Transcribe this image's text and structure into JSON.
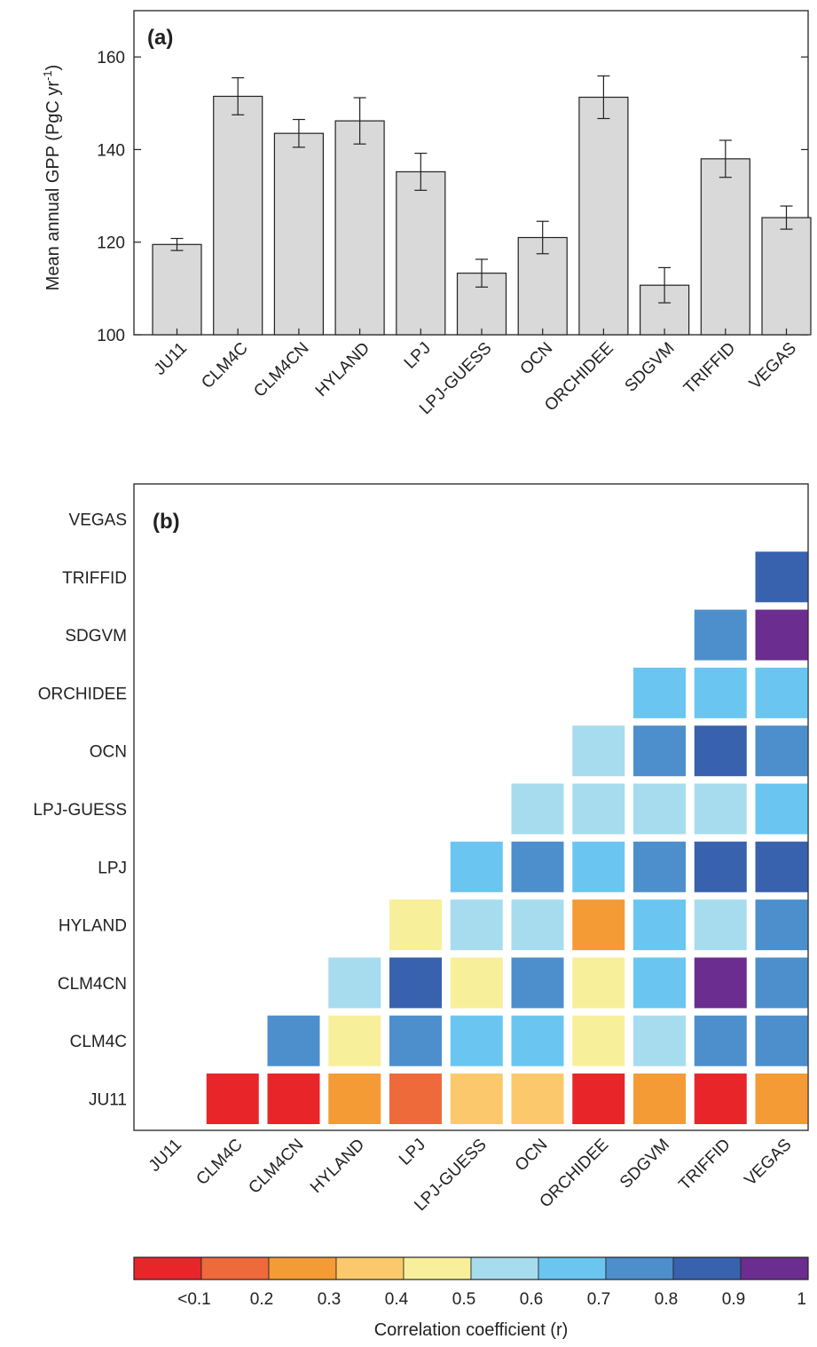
{
  "chart_data": [
    {
      "type": "bar",
      "panel_label": "(a)",
      "ylabel": "Mean annual GPP (PgC yr",
      "ylabel_sup": "-1",
      "ylabel_close": ")",
      "ylim": [
        100,
        170
      ],
      "yticks": [
        100,
        120,
        140,
        160
      ],
      "categories": [
        "JU11",
        "CLM4C",
        "CLM4CN",
        "HYLAND",
        "LPJ",
        "LPJ-GUESS",
        "OCN",
        "ORCHIDEE",
        "SDGVM",
        "TRIFFID",
        "VEGAS"
      ],
      "values": [
        119.5,
        151.5,
        143.5,
        146.2,
        135.2,
        113.3,
        121.0,
        151.3,
        110.7,
        138.0,
        125.3
      ],
      "errors": [
        1.3,
        4.0,
        3.0,
        5.0,
        4.0,
        3.0,
        3.5,
        4.6,
        3.8,
        4.0,
        2.5
      ],
      "bar_color": "#d9d9d9",
      "grid": false
    },
    {
      "type": "heatmap",
      "panel_label": "(b)",
      "x_categories": [
        "JU11",
        "CLM4C",
        "CLM4CN",
        "HYLAND",
        "LPJ",
        "LPJ-GUESS",
        "OCN",
        "ORCHIDEE",
        "SDGVM",
        "TRIFFID",
        "VEGAS"
      ],
      "y_categories": [
        "JU11",
        "CLM4C",
        "CLM4CN",
        "HYLAND",
        "LPJ",
        "LPJ-GUESS",
        "OCN",
        "ORCHIDEE",
        "SDGVM",
        "TRIFFID",
        "VEGAS"
      ],
      "cells": [
        {
          "row": "JU11",
          "col": "CLM4C",
          "r": 0.05
        },
        {
          "row": "JU11",
          "col": "CLM4CN",
          "r": 0.05
        },
        {
          "row": "JU11",
          "col": "HYLAND",
          "r": 0.25
        },
        {
          "row": "JU11",
          "col": "LPJ",
          "r": 0.15
        },
        {
          "row": "JU11",
          "col": "LPJ-GUESS",
          "r": 0.35
        },
        {
          "row": "JU11",
          "col": "OCN",
          "r": 0.35
        },
        {
          "row": "JU11",
          "col": "ORCHIDEE",
          "r": 0.05
        },
        {
          "row": "JU11",
          "col": "SDGVM",
          "r": 0.25
        },
        {
          "row": "JU11",
          "col": "TRIFFID",
          "r": 0.05
        },
        {
          "row": "JU11",
          "col": "VEGAS",
          "r": 0.25
        },
        {
          "row": "CLM4C",
          "col": "CLM4CN",
          "r": 0.75
        },
        {
          "row": "CLM4C",
          "col": "HYLAND",
          "r": 0.45
        },
        {
          "row": "CLM4C",
          "col": "LPJ",
          "r": 0.75
        },
        {
          "row": "CLM4C",
          "col": "LPJ-GUESS",
          "r": 0.65
        },
        {
          "row": "CLM4C",
          "col": "OCN",
          "r": 0.65
        },
        {
          "row": "CLM4C",
          "col": "ORCHIDEE",
          "r": 0.45
        },
        {
          "row": "CLM4C",
          "col": "SDGVM",
          "r": 0.55
        },
        {
          "row": "CLM4C",
          "col": "TRIFFID",
          "r": 0.75
        },
        {
          "row": "CLM4C",
          "col": "VEGAS",
          "r": 0.75
        },
        {
          "row": "CLM4CN",
          "col": "HYLAND",
          "r": 0.55
        },
        {
          "row": "CLM4CN",
          "col": "LPJ",
          "r": 0.85
        },
        {
          "row": "CLM4CN",
          "col": "LPJ-GUESS",
          "r": 0.45
        },
        {
          "row": "CLM4CN",
          "col": "OCN",
          "r": 0.75
        },
        {
          "row": "CLM4CN",
          "col": "ORCHIDEE",
          "r": 0.45
        },
        {
          "row": "CLM4CN",
          "col": "SDGVM",
          "r": 0.65
        },
        {
          "row": "CLM4CN",
          "col": "TRIFFID",
          "r": 0.95
        },
        {
          "row": "CLM4CN",
          "col": "VEGAS",
          "r": 0.75
        },
        {
          "row": "HYLAND",
          "col": "LPJ",
          "r": 0.45
        },
        {
          "row": "HYLAND",
          "col": "LPJ-GUESS",
          "r": 0.55
        },
        {
          "row": "HYLAND",
          "col": "OCN",
          "r": 0.55
        },
        {
          "row": "HYLAND",
          "col": "ORCHIDEE",
          "r": 0.25
        },
        {
          "row": "HYLAND",
          "col": "SDGVM",
          "r": 0.65
        },
        {
          "row": "HYLAND",
          "col": "TRIFFID",
          "r": 0.55
        },
        {
          "row": "HYLAND",
          "col": "VEGAS",
          "r": 0.75
        },
        {
          "row": "LPJ",
          "col": "LPJ-GUESS",
          "r": 0.65
        },
        {
          "row": "LPJ",
          "col": "OCN",
          "r": 0.75
        },
        {
          "row": "LPJ",
          "col": "ORCHIDEE",
          "r": 0.65
        },
        {
          "row": "LPJ",
          "col": "SDGVM",
          "r": 0.75
        },
        {
          "row": "LPJ",
          "col": "TRIFFID",
          "r": 0.85
        },
        {
          "row": "LPJ",
          "col": "VEGAS",
          "r": 0.85
        },
        {
          "row": "LPJ-GUESS",
          "col": "OCN",
          "r": 0.55
        },
        {
          "row": "LPJ-GUESS",
          "col": "ORCHIDEE",
          "r": 0.55
        },
        {
          "row": "LPJ-GUESS",
          "col": "SDGVM",
          "r": 0.55
        },
        {
          "row": "LPJ-GUESS",
          "col": "TRIFFID",
          "r": 0.55
        },
        {
          "row": "LPJ-GUESS",
          "col": "VEGAS",
          "r": 0.65
        },
        {
          "row": "OCN",
          "col": "ORCHIDEE",
          "r": 0.55
        },
        {
          "row": "OCN",
          "col": "SDGVM",
          "r": 0.75
        },
        {
          "row": "OCN",
          "col": "TRIFFID",
          "r": 0.85
        },
        {
          "row": "OCN",
          "col": "VEGAS",
          "r": 0.75
        },
        {
          "row": "ORCHIDEE",
          "col": "SDGVM",
          "r": 0.65
        },
        {
          "row": "ORCHIDEE",
          "col": "TRIFFID",
          "r": 0.65
        },
        {
          "row": "ORCHIDEE",
          "col": "VEGAS",
          "r": 0.65
        },
        {
          "row": "SDGVM",
          "col": "TRIFFID",
          "r": 0.75
        },
        {
          "row": "SDGVM",
          "col": "VEGAS",
          "r": 0.95
        },
        {
          "row": "TRIFFID",
          "col": "VEGAS",
          "r": 0.85
        }
      ],
      "colorbar": {
        "label": "Correlation coefficient (r)",
        "bins": [
          {
            "upper": 0.1,
            "color": "#e8262a"
          },
          {
            "upper": 0.2,
            "color": "#ee6a3b"
          },
          {
            "upper": 0.3,
            "color": "#f59b35"
          },
          {
            "upper": 0.4,
            "color": "#fbc96b"
          },
          {
            "upper": 0.5,
            "color": "#f8ef9a"
          },
          {
            "upper": 0.6,
            "color": "#a7dcef"
          },
          {
            "upper": 0.7,
            "color": "#6ac6f0"
          },
          {
            "upper": 0.8,
            "color": "#4d8fcc"
          },
          {
            "upper": 0.9,
            "color": "#3862ae"
          },
          {
            "upper": 1.0,
            "color": "#6b2d8f"
          }
        ],
        "tick_labels": [
          "<0.1",
          "0.2",
          "0.3",
          "0.4",
          "0.5",
          "0.6",
          "0.7",
          "0.8",
          "0.9",
          "1"
        ]
      }
    }
  ]
}
